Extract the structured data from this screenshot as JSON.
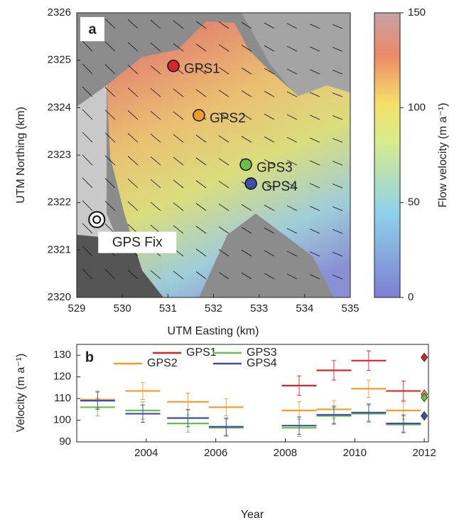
{
  "chart_data": [
    {
      "type": "map",
      "panel_label": "a",
      "xlabel": "UTM Easting (km)",
      "ylabel": "UTM Northing (km)",
      "xlim": [
        529,
        535
      ],
      "ylim": [
        2320,
        2326
      ],
      "xticks": [
        529,
        530,
        531,
        532,
        533,
        534,
        535
      ],
      "yticks": [
        2320,
        2321,
        2322,
        2323,
        2324,
        2325,
        2326
      ],
      "points": [
        {
          "name": "GPS1",
          "x": 531.12,
          "y": 2324.88,
          "color": "#d7262b"
        },
        {
          "name": "GPS2",
          "x": 531.68,
          "y": 2323.84,
          "color": "#f39c2b"
        },
        {
          "name": "GPS3",
          "x": 532.71,
          "y": 2322.8,
          "color": "#6cbf4a"
        },
        {
          "name": "GPS4",
          "x": 532.82,
          "y": 2322.4,
          "color": "#3d4fa8"
        },
        {
          "name": "GPS Fix",
          "x": 529.44,
          "y": 2321.64,
          "color": "#ffffff"
        }
      ],
      "colorbar": {
        "label": "Flow velocity (m a⁻¹)",
        "lim": [
          0,
          150
        ],
        "ticks": [
          0,
          50,
          100,
          150
        ]
      }
    },
    {
      "type": "interval",
      "panel_label": "b",
      "xlabel": "Year",
      "ylabel": "Velocity (m a⁻¹)",
      "xlim": [
        2002,
        2012.12
      ],
      "ylim": [
        90,
        135
      ],
      "xticks": [
        2004,
        2006,
        2008,
        2010,
        2012
      ],
      "yticks": [
        90,
        100,
        110,
        120,
        130
      ],
      "point_x": 2012,
      "series": [
        {
          "name": "GPS1",
          "color": "#d7262b",
          "start": [
            2007.9,
            2008.9,
            2009.9,
            2010.9
          ],
          "end": [
            2008.9,
            2009.9,
            2010.9,
            2011.9
          ],
          "values": [
            116,
            123,
            127.5,
            113.5
          ],
          "errors": [
            4.5,
            4.5,
            4.5,
            4.5
          ],
          "point": 129
        },
        {
          "name": "GPS2",
          "color": "#f39c2b",
          "start": [
            2002.1,
            2003.4,
            2004.6,
            2005.8,
            2007.9,
            2008.9,
            2009.9,
            2010.9
          ],
          "end": [
            2003.1,
            2004.4,
            2005.8,
            2006.8,
            2008.9,
            2009.9,
            2010.9,
            2011.9
          ],
          "values": [
            109.5,
            113.5,
            108.5,
            106,
            104.5,
            105,
            114.5,
            104.5
          ],
          "errors": [
            4,
            4,
            4,
            4,
            4,
            4,
            4,
            4
          ],
          "point": 112
        },
        {
          "name": "GPS3",
          "color": "#6cbf4a",
          "start": [
            2002.1,
            2003.4,
            2004.6,
            2005.8,
            2007.9,
            2008.9,
            2009.9,
            2010.9
          ],
          "end": [
            2003.1,
            2004.4,
            2005.8,
            2006.8,
            2008.9,
            2009.9,
            2010.9,
            2011.9
          ],
          "values": [
            106,
            104.5,
            98.5,
            96.5,
            96.5,
            102,
            103,
            98
          ],
          "errors": [
            4,
            4,
            4,
            4,
            4,
            4,
            4,
            4
          ],
          "point": 110.5
        },
        {
          "name": "GPS4",
          "color": "#3d4fa8",
          "start": [
            2002.1,
            2003.4,
            2004.6,
            2005.8,
            2007.9,
            2008.9,
            2009.9,
            2010.9
          ],
          "end": [
            2003.1,
            2004.4,
            2005.8,
            2006.8,
            2008.9,
            2009.9,
            2010.9,
            2011.9
          ],
          "values": [
            109,
            103,
            101,
            97,
            97.5,
            102.5,
            103.5,
            98.5
          ],
          "errors": [
            4,
            4,
            4,
            4,
            4,
            4,
            4,
            4
          ],
          "point": 102
        }
      ]
    }
  ]
}
